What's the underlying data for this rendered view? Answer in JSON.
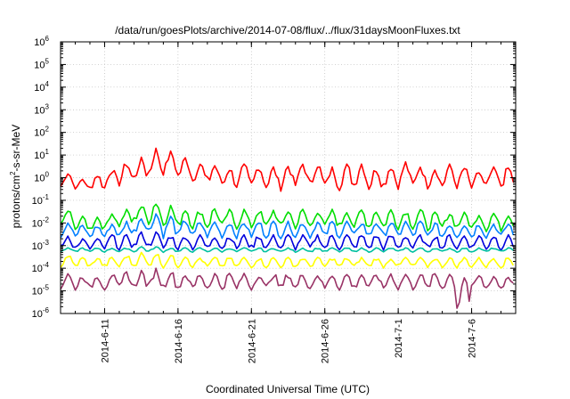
{
  "chart_data": {
    "type": "line",
    "title": "/data/run/goesPlots/archive/2014-07-08/flux/../flux/31daysMoonFluxes.txt",
    "xlabel": "Coordinated Universal Time (UTC)",
    "ylabel_parts": [
      "protons/cm",
      "2",
      "-s-sr-MeV"
    ],
    "xlim": [
      "2014-06-08",
      "2014-07-09"
    ],
    "ylim": [
      1e-06,
      1000000.0
    ],
    "yscale": "log",
    "grid": true,
    "x_ticks": [
      "2014-6-11",
      "2014-6-16",
      "2014-6-21",
      "2014-6-26",
      "2014-7-1",
      "2014-7-6"
    ],
    "y_ticks": [
      {
        "base": "10",
        "exp": "-6"
      },
      {
        "base": "10",
        "exp": "-5"
      },
      {
        "base": "10",
        "exp": "-4"
      },
      {
        "base": "10",
        "exp": "-3"
      },
      {
        "base": "10",
        "exp": "-2"
      },
      {
        "base": "10",
        "exp": "-1"
      },
      {
        "base": "10",
        "exp": "0"
      },
      {
        "base": "10",
        "exp": "1"
      },
      {
        "base": "10",
        "exp": "2"
      },
      {
        "base": "10",
        "exp": "3"
      },
      {
        "base": "10",
        "exp": "4"
      },
      {
        "base": "10",
        "exp": "5"
      },
      {
        "base": "10",
        "exp": "6"
      }
    ],
    "series": [
      {
        "color": "#ff0000",
        "daily_min": [
          0.3,
          0.2,
          0.25,
          0.4,
          0.5,
          0.6,
          1.0,
          1.2,
          0.8,
          0.5,
          0.4,
          0.3,
          0.3,
          0.3,
          0.25,
          0.3,
          0.3,
          0.3,
          0.25,
          0.3,
          0.3,
          0.25,
          0.3,
          0.3,
          0.3,
          0.3,
          0.3,
          0.3,
          0.25,
          0.3,
          0.3
        ],
        "daily_max": [
          2.0,
          1.0,
          1.5,
          2.5,
          5.0,
          8.0,
          20,
          15,
          8.0,
          5.0,
          4.0,
          3.0,
          4.0,
          4.0,
          3.0,
          4.0,
          5.0,
          5.0,
          3.0,
          4.0,
          5.0,
          3.0,
          4.0,
          5.0,
          4.0,
          3.0,
          4.0,
          3.0,
          2.0,
          3.0,
          3.0
        ]
      },
      {
        "color": "#00dd00",
        "daily_min": [
          0.005,
          0.004,
          0.004,
          0.006,
          0.006,
          0.01,
          0.008,
          0.006,
          0.005,
          0.005,
          0.005,
          0.005,
          0.005,
          0.005,
          0.005,
          0.005,
          0.005,
          0.005,
          0.005,
          0.005,
          0.005,
          0.005,
          0.005,
          0.005,
          0.005,
          0.004,
          0.005,
          0.005,
          0.004,
          0.004,
          0.004
        ],
        "daily_max": [
          0.04,
          0.02,
          0.02,
          0.03,
          0.04,
          0.06,
          0.1,
          0.06,
          0.05,
          0.04,
          0.05,
          0.04,
          0.04,
          0.04,
          0.04,
          0.04,
          0.04,
          0.04,
          0.04,
          0.04,
          0.04,
          0.04,
          0.04,
          0.04,
          0.04,
          0.03,
          0.03,
          0.03,
          0.03,
          0.03,
          0.03
        ]
      },
      {
        "color": "#0080ff",
        "daily_min": [
          0.002,
          0.002,
          0.002,
          0.002,
          0.002,
          0.003,
          0.003,
          0.002,
          0.002,
          0.002,
          0.002,
          0.002,
          0.002,
          0.002,
          0.002,
          0.002,
          0.002,
          0.002,
          0.002,
          0.002,
          0.002,
          0.002,
          0.002,
          0.002,
          0.002,
          0.002,
          0.002,
          0.002,
          0.002,
          0.002,
          0.002
        ],
        "daily_max": [
          0.012,
          0.008,
          0.008,
          0.01,
          0.012,
          0.02,
          0.03,
          0.02,
          0.015,
          0.012,
          0.012,
          0.012,
          0.012,
          0.012,
          0.012,
          0.012,
          0.012,
          0.012,
          0.012,
          0.012,
          0.012,
          0.012,
          0.012,
          0.012,
          0.012,
          0.01,
          0.01,
          0.01,
          0.01,
          0.01,
          0.01
        ]
      },
      {
        "color": "#0000dd",
        "daily_min": [
          0.0006,
          0.0006,
          0.0006,
          0.0006,
          0.0006,
          0.0007,
          0.0007,
          0.0006,
          0.0006,
          0.0006,
          0.0006,
          0.0006,
          0.0006,
          0.0006,
          0.0006,
          0.0006,
          0.0006,
          0.0006,
          0.0006,
          0.0006,
          0.0006,
          0.0006,
          0.0006,
          0.0006,
          0.0006,
          0.0006,
          0.0006,
          0.0006,
          0.0006,
          0.0006,
          0.0006
        ],
        "daily_max": [
          0.003,
          0.002,
          0.002,
          0.003,
          0.003,
          0.004,
          0.004,
          0.003,
          0.003,
          0.003,
          0.003,
          0.003,
          0.003,
          0.003,
          0.003,
          0.003,
          0.003,
          0.003,
          0.003,
          0.003,
          0.003,
          0.003,
          0.003,
          0.003,
          0.003,
          0.003,
          0.003,
          0.003,
          0.003,
          0.003,
          0.003
        ]
      },
      {
        "color": "#00c0a0",
        "daily_min": [
          0.0005,
          0.0005,
          0.0005,
          0.0005,
          0.0005,
          0.0005,
          0.0005,
          0.0005,
          0.0005,
          0.0005,
          0.0005,
          0.0005,
          0.0005,
          0.0005,
          0.0005,
          0.0005,
          0.0005,
          0.0005,
          0.0005,
          0.0005,
          0.0005,
          0.0005,
          0.0005,
          0.0005,
          0.0005,
          0.0005,
          0.0005,
          0.0005,
          0.0005,
          0.0005,
          0.0005
        ],
        "daily_max": [
          0.0008,
          0.0008,
          0.0008,
          0.0008,
          0.0008,
          0.0009,
          0.0009,
          0.0008,
          0.0008,
          0.0008,
          0.0008,
          0.0008,
          0.0008,
          0.0008,
          0.0008,
          0.0008,
          0.0008,
          0.0008,
          0.0008,
          0.0008,
          0.0008,
          0.0008,
          0.0008,
          0.0008,
          0.0008,
          0.0008,
          0.0008,
          0.0008,
          0.0008,
          0.0008,
          0.0008
        ]
      },
      {
        "color": "#ffff00",
        "daily_min": [
          0.0001,
          0.0001,
          0.0001,
          0.0001,
          0.0001,
          0.0001,
          0.0001,
          0.0001,
          0.0001,
          0.0001,
          0.0001,
          0.0001,
          0.0001,
          0.0001,
          0.0001,
          0.0001,
          0.0001,
          0.0001,
          0.0001,
          0.0001,
          0.0001,
          0.0001,
          0.0001,
          0.0001,
          0.0001,
          0.0001,
          0.0001,
          0.0001,
          0.0001,
          0.0001,
          0.0001
        ],
        "daily_max": [
          0.0004,
          0.0003,
          0.0003,
          0.0003,
          0.0004,
          0.0005,
          0.0005,
          0.0004,
          0.0004,
          0.0003,
          0.0003,
          0.0003,
          0.0003,
          0.0003,
          0.0003,
          0.0003,
          0.0003,
          0.0003,
          0.0003,
          0.0003,
          0.0003,
          0.0003,
          0.0003,
          0.0003,
          0.0003,
          0.0003,
          0.0003,
          0.0003,
          0.0003,
          0.0003,
          0.0003
        ]
      },
      {
        "color": "#993366",
        "daily_min": [
          1e-05,
          1e-05,
          1e-05,
          1e-05,
          1e-05,
          1e-05,
          1e-05,
          1e-05,
          1e-05,
          1e-05,
          1e-05,
          1e-05,
          1e-05,
          1e-05,
          1e-05,
          1e-05,
          1e-05,
          1e-05,
          1e-05,
          1e-05,
          1e-05,
          1e-05,
          1e-05,
          1e-05,
          1e-05,
          1e-05,
          1e-05,
          1e-06,
          1e-05,
          1e-05,
          1e-05
        ],
        "daily_max": [
          6e-05,
          5e-05,
          5e-05,
          6e-05,
          7e-05,
          8e-05,
          0.0001,
          8e-05,
          6e-05,
          6e-05,
          6e-05,
          6e-05,
          6e-05,
          6e-05,
          6e-05,
          6e-05,
          6e-05,
          6e-05,
          6e-05,
          6e-05,
          6e-05,
          6e-05,
          6e-05,
          6e-05,
          6e-05,
          6e-05,
          6e-05,
          6e-05,
          5e-05,
          5e-05,
          5e-05
        ]
      }
    ]
  }
}
